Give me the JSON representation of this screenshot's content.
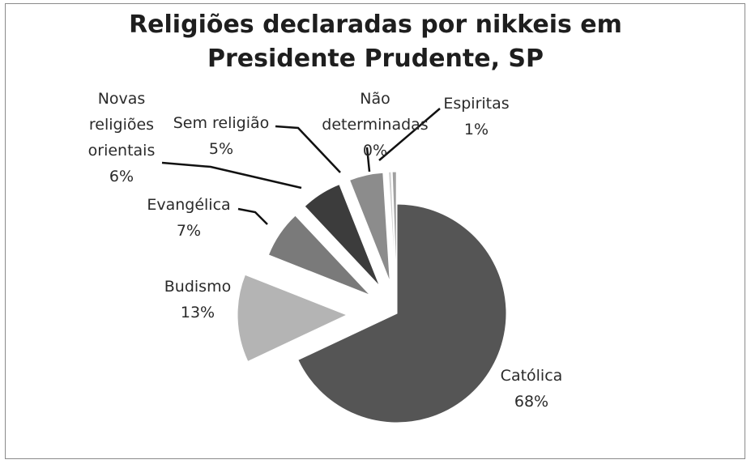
{
  "chart_data": {
    "type": "pie",
    "title_line1": "Religiões declaradas por nikkeis em",
    "title_line2": "Presidente Prudente, SP",
    "exploded": true,
    "slices": [
      {
        "label": "Católica",
        "percent_label": "68%",
        "value": 68,
        "color": "#555555"
      },
      {
        "label": "Budismo",
        "percent_label": "13%",
        "value": 13,
        "color": "#b4b4b4"
      },
      {
        "label": "Evangélica",
        "percent_label": "7%",
        "value": 7,
        "color": "#7a7a7a"
      },
      {
        "label": "Novas religiões orientais",
        "label_lines": [
          "Novas",
          "religiões",
          "orientais"
        ],
        "percent_label": "6%",
        "value": 6,
        "color": "#3c3c3c"
      },
      {
        "label": "Sem religião",
        "percent_label": "5%",
        "value": 5,
        "color": "#8c8c8c"
      },
      {
        "label": "Não determinadas",
        "label_lines": [
          "Não",
          "determinadas"
        ],
        "percent_label": "0%",
        "value": 0.4,
        "color": "#d0d0d0"
      },
      {
        "label": "Espiritas",
        "percent_label": "1%",
        "value": 0.6,
        "color": "#a0a0a0"
      }
    ]
  }
}
